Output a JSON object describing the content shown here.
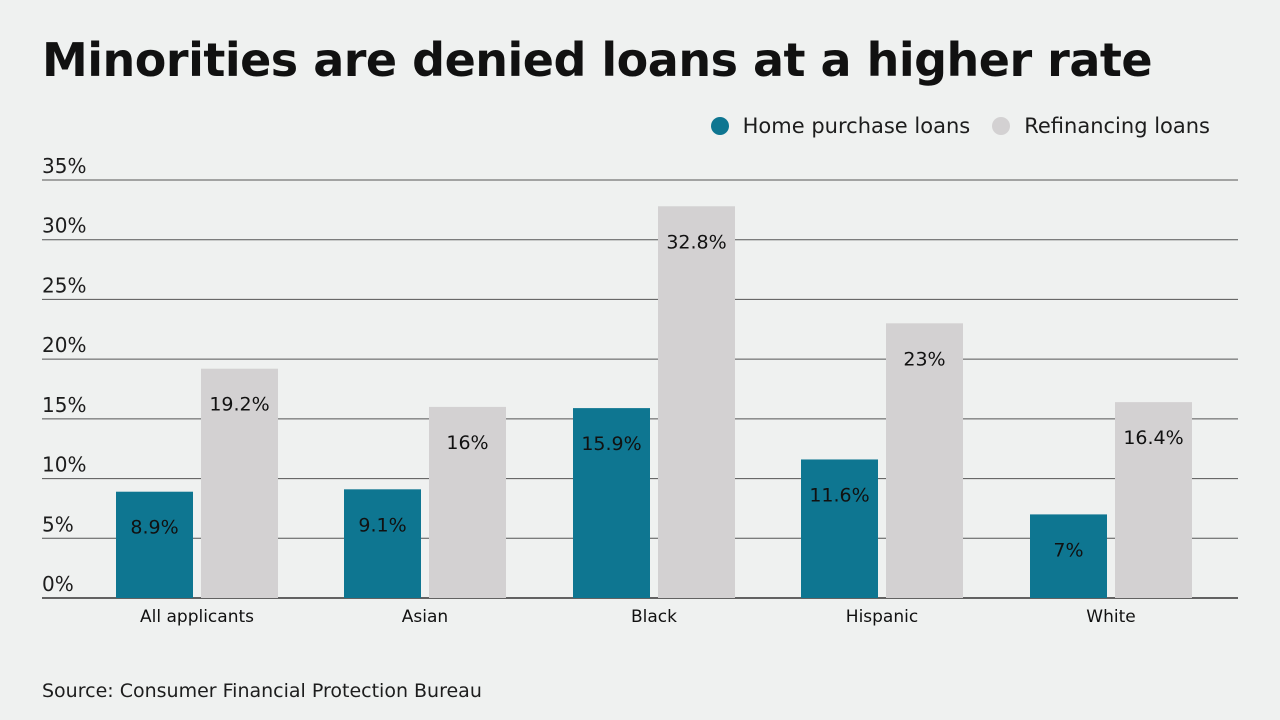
{
  "title": "Minorities are denied loans at a higher rate",
  "source": "Source: Consumer Financial Protection Bureau",
  "colors": {
    "background": "#eff1f0",
    "home_purchase": "#0e7691",
    "refinancing": "#d3d1d2",
    "grid": "#555555",
    "text": "#111111"
  },
  "chart_data": {
    "type": "bar",
    "title": "Minorities are denied loans at a higher rate",
    "xlabel": "",
    "ylabel": "",
    "categories": [
      "All applicants",
      "Asian",
      "Black",
      "Hispanic",
      "White"
    ],
    "series": [
      {
        "name": "Home purchase loans",
        "color": "#0e7691",
        "values": [
          8.9,
          9.1,
          15.9,
          11.6,
          7
        ],
        "labels": [
          "8.9%",
          "9.1%",
          "15.9%",
          "11.6%",
          "7%"
        ]
      },
      {
        "name": "Refinancing loans",
        "color": "#d3d1d2",
        "values": [
          19.2,
          16,
          32.8,
          23,
          16.4
        ],
        "labels": [
          "19.2%",
          "16%",
          "32.8%",
          "23%",
          "16.4%"
        ]
      }
    ],
    "ylim": [
      0,
      35
    ],
    "yticks": [
      0,
      5,
      10,
      15,
      20,
      25,
      30,
      35
    ],
    "ytick_labels": [
      "0%",
      "5%",
      "10%",
      "15%",
      "20%",
      "25%",
      "30%",
      "35%"
    ],
    "grid": true,
    "legend_position": "top-right"
  }
}
